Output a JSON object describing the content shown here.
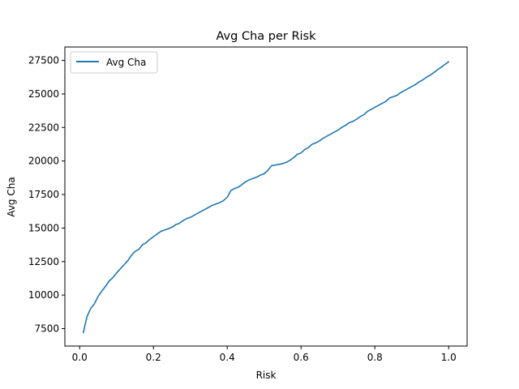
{
  "chart_data": {
    "type": "line",
    "title": "Avg Cha per Risk",
    "xlabel": "Risk",
    "ylabel": "Avg Cha",
    "xlim": [
      -0.04,
      1.05
    ],
    "ylim": [
      6200,
      28500
    ],
    "grid": false,
    "legend_position": "upper-left",
    "x_ticks": [
      0.0,
      0.2,
      0.4,
      0.6,
      0.8,
      1.0
    ],
    "x_tick_labels": [
      "0.0",
      "0.2",
      "0.4",
      "0.6",
      "0.8",
      "1.0"
    ],
    "y_ticks": [
      7500,
      10000,
      12500,
      15000,
      17500,
      20000,
      22500,
      25000,
      27500
    ],
    "y_tick_labels": [
      "7500",
      "10000",
      "12500",
      "15000",
      "17500",
      "20000",
      "22500",
      "25000",
      "27500"
    ],
    "series": [
      {
        "name": "Avg Cha",
        "color": "#1f77b4",
        "x": [
          0.01,
          0.02,
          0.03,
          0.04,
          0.05,
          0.06,
          0.07,
          0.08,
          0.09,
          0.1,
          0.11,
          0.12,
          0.13,
          0.14,
          0.15,
          0.16,
          0.17,
          0.18,
          0.19,
          0.2,
          0.21,
          0.22,
          0.23,
          0.24,
          0.25,
          0.26,
          0.27,
          0.28,
          0.29,
          0.3,
          0.31,
          0.32,
          0.33,
          0.34,
          0.35,
          0.36,
          0.37,
          0.38,
          0.39,
          0.4,
          0.41,
          0.42,
          0.43,
          0.44,
          0.45,
          0.46,
          0.47,
          0.48,
          0.49,
          0.5,
          0.51,
          0.52,
          0.53,
          0.54,
          0.55,
          0.56,
          0.57,
          0.58,
          0.59,
          0.6,
          0.61,
          0.62,
          0.63,
          0.64,
          0.65,
          0.66,
          0.67,
          0.68,
          0.69,
          0.7,
          0.71,
          0.72,
          0.73,
          0.74,
          0.75,
          0.76,
          0.77,
          0.78,
          0.79,
          0.8,
          0.81,
          0.82,
          0.83,
          0.84,
          0.85,
          0.86,
          0.87,
          0.88,
          0.89,
          0.9,
          0.91,
          0.92,
          0.93,
          0.94,
          0.95,
          0.96,
          0.97,
          0.98,
          0.99,
          1.0
        ],
        "y": [
          7200,
          8400,
          9000,
          9350,
          9900,
          10300,
          10650,
          11050,
          11300,
          11650,
          11950,
          12250,
          12550,
          12950,
          13250,
          13400,
          13750,
          13900,
          14150,
          14350,
          14550,
          14750,
          14850,
          14950,
          15050,
          15250,
          15350,
          15550,
          15700,
          15800,
          15950,
          16100,
          16250,
          16400,
          16550,
          16700,
          16800,
          16900,
          17050,
          17300,
          17800,
          17950,
          18050,
          18250,
          18450,
          18600,
          18700,
          18800,
          18950,
          19050,
          19300,
          19650,
          19700,
          19750,
          19800,
          19900,
          20050,
          20250,
          20500,
          20600,
          20850,
          21000,
          21250,
          21350,
          21500,
          21700,
          21850,
          22000,
          22150,
          22300,
          22500,
          22650,
          22850,
          22950,
          23100,
          23300,
          23450,
          23700,
          23850,
          24000,
          24150,
          24300,
          24450,
          24700,
          24800,
          24900,
          25100,
          25250,
          25400,
          25550,
          25700,
          25900,
          26050,
          26250,
          26400,
          26600,
          26800,
          27000,
          27200,
          27400
        ]
      }
    ]
  }
}
